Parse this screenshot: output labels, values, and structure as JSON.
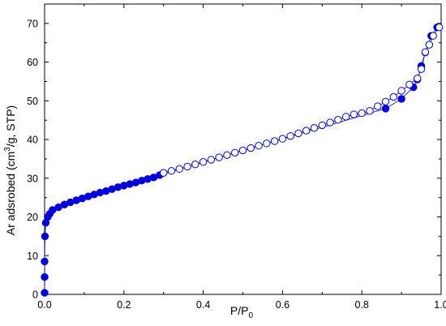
{
  "chart_data": {
    "type": "scatter",
    "title": "",
    "xlabel": "P/P",
    "xlabel_sub": "0",
    "ylabel_parts": [
      "Ar adsrobed (cm",
      "3",
      "/g, STP)"
    ],
    "xlim": [
      0.0,
      1.0
    ],
    "ylim": [
      0,
      75
    ],
    "x_ticks": [
      0.0,
      0.2,
      0.4,
      0.6,
      0.8,
      1.0
    ],
    "x_tick_labels": [
      "0.0",
      "0.2",
      "0.4",
      "0.6",
      "0.8",
      "1.0"
    ],
    "y_ticks": [
      0,
      10,
      20,
      30,
      40,
      50,
      60,
      70
    ],
    "y_tick_labels": [
      "0",
      "10",
      "20",
      "30",
      "40",
      "50",
      "60",
      "70"
    ],
    "grid": false,
    "colors": {
      "series": "#0000dd",
      "axis": "#000000"
    },
    "series": [
      {
        "marker": "filled-circle",
        "x": [
          0.0,
          0.0,
          0.0,
          0.001,
          0.003,
          0.008,
          0.013,
          0.02,
          0.035,
          0.05,
          0.065,
          0.08,
          0.095,
          0.11,
          0.125,
          0.14,
          0.155,
          0.17,
          0.185,
          0.2,
          0.215,
          0.23,
          0.245,
          0.26,
          0.275,
          0.29,
          0.86,
          0.9,
          0.93,
          0.94,
          0.95,
          0.96,
          0.975,
          0.99
        ],
        "y": [
          0.4,
          4.5,
          8.5,
          15.0,
          18.5,
          20.0,
          20.8,
          21.8,
          22.5,
          23.2,
          23.8,
          24.3,
          24.8,
          25.3,
          25.8,
          26.3,
          26.7,
          27.2,
          27.7,
          28.1,
          28.5,
          28.9,
          29.4,
          29.8,
          30.2,
          30.8,
          48.0,
          50.5,
          53.5,
          55.5,
          59.0,
          62.5,
          66.8,
          69.0
        ]
      },
      {
        "marker": "open-circle",
        "x": [
          0.3,
          0.32,
          0.34,
          0.36,
          0.38,
          0.4,
          0.42,
          0.44,
          0.46,
          0.48,
          0.5,
          0.52,
          0.54,
          0.56,
          0.58,
          0.6,
          0.62,
          0.64,
          0.66,
          0.68,
          0.7,
          0.72,
          0.74,
          0.76,
          0.78,
          0.8,
          0.82,
          0.84,
          0.86,
          0.88,
          0.9,
          0.92,
          0.94,
          0.95,
          0.96,
          0.97,
          0.98,
          0.995
        ],
        "y": [
          31.4,
          31.9,
          32.4,
          33.0,
          33.6,
          34.2,
          34.8,
          35.4,
          36.0,
          36.6,
          37.2,
          37.8,
          38.4,
          39.0,
          39.6,
          40.2,
          40.9,
          41.6,
          42.3,
          43.0,
          43.7,
          44.4,
          45.1,
          45.9,
          46.5,
          46.8,
          47.4,
          48.6,
          49.8,
          51.0,
          52.6,
          54.2,
          55.8,
          58.2,
          62.6,
          64.5,
          66.8,
          69.0
        ]
      }
    ]
  }
}
